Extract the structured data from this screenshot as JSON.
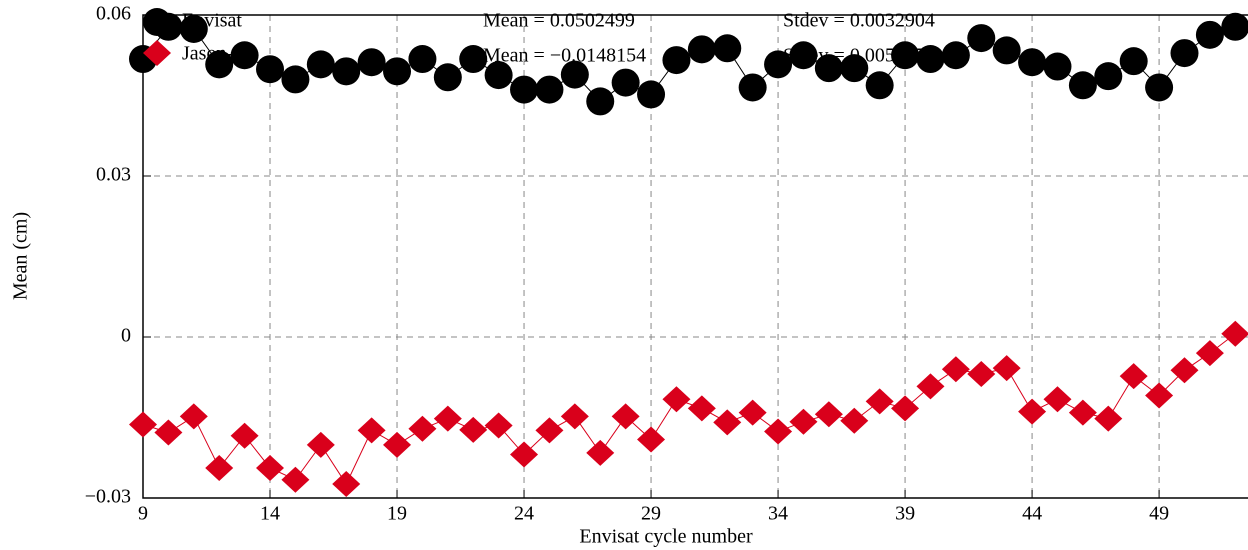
{
  "chart_data": {
    "type": "line",
    "x_label": "Envisat cycle number",
    "y_label": "Mean (cm)",
    "x": [
      9,
      10,
      11,
      12,
      13,
      14,
      15,
      16,
      17,
      18,
      19,
      20,
      21,
      22,
      23,
      24,
      25,
      26,
      27,
      28,
      29,
      30,
      31,
      32,
      33,
      34,
      35,
      36,
      37,
      38,
      39,
      40,
      41,
      42,
      43,
      44,
      45,
      46,
      47,
      48,
      49,
      50,
      51,
      52
    ],
    "series": [
      {
        "name": "Envisat",
        "color": "#000000",
        "marker": "circle",
        "values": [
          0.0518,
          0.0578,
          0.0574,
          0.0508,
          0.0525,
          0.0499,
          0.048,
          0.0508,
          0.0495,
          0.0512,
          0.0495,
          0.0518,
          0.0484,
          0.0518,
          0.0488,
          0.0461,
          0.0461,
          0.0489,
          0.0439,
          0.0474,
          0.0452,
          0.0516,
          0.0536,
          0.0538,
          0.0465,
          0.0508,
          0.0525,
          0.0501,
          0.0501,
          0.0469,
          0.0525,
          0.0518,
          0.0525,
          0.0557,
          0.0534,
          0.0512,
          0.0504,
          0.0469,
          0.0486,
          0.0514,
          0.0465,
          0.0529,
          0.0563,
          0.0578
        ]
      },
      {
        "name": "Jason-1",
        "color": "#d9001b",
        "marker": "diamond",
        "values": [
          -0.0163,
          -0.0178,
          -0.0148,
          -0.0244,
          -0.0184,
          -0.0244,
          -0.0266,
          -0.0201,
          -0.0274,
          -0.0174,
          -0.0201,
          -0.0171,
          -0.0152,
          -0.0173,
          -0.0165,
          -0.0219,
          -0.0174,
          -0.0148,
          -0.0216,
          -0.0148,
          -0.0191,
          -0.0116,
          -0.0133,
          -0.0159,
          -0.0141,
          -0.0176,
          -0.0158,
          -0.0144,
          -0.0156,
          -0.012,
          -0.0133,
          -0.0092,
          -0.006,
          -0.0069,
          -0.0058,
          -0.0139,
          -0.0116,
          -0.0141,
          -0.0152,
          -0.0073,
          -0.0109,
          -0.0062,
          -0.003,
          0.0006
        ]
      }
    ],
    "annotations": [
      "Mean = 0.0502499",
      "Stdev = 0.0032904",
      "Mean = −0.0148154",
      "Stdev = 0.0050354"
    ],
    "xlim": [
      9,
      52.5
    ],
    "ylim": [
      -0.03,
      0.06
    ],
    "xticks": [
      9,
      14,
      19,
      24,
      29,
      34,
      39,
      44,
      49
    ],
    "yticks": [
      {
        "value": -0.03,
        "label": "−0.03"
      },
      0,
      0.03,
      0.06
    ],
    "grid": true,
    "legend": "upper-left"
  }
}
